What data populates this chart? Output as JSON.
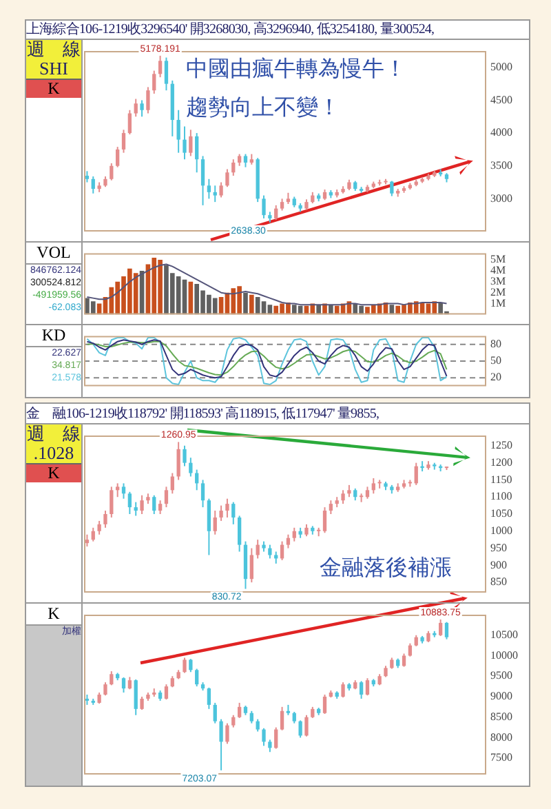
{
  "chart_data": [
    {
      "type": "candlestick",
      "title": "上海綜合106-1219收3296540' 開3268030, 高3296940, 低3254180, 量300524,",
      "subtitle": "中國由瘋牛轉為慢牛！趨勢向上不變！",
      "annotations": [
        "週　線",
        "SHI",
        "K",
        "5178.191",
        "2638.30"
      ],
      "categories": [
        null,
        null,
        null,
        null,
        null,
        null,
        null,
        null,
        null,
        null,
        null,
        null,
        null,
        null,
        null,
        null,
        null,
        null,
        null,
        null,
        null,
        null,
        null,
        null,
        null,
        null,
        null,
        null,
        null,
        null,
        null,
        null,
        null,
        null,
        null,
        null,
        null,
        null,
        null,
        null,
        null,
        null,
        null,
        null,
        null,
        null,
        null,
        null,
        null,
        null,
        null,
        null,
        null,
        null,
        null,
        null,
        null,
        null,
        null,
        null,
        null,
        null,
        null,
        null,
        null,
        null
      ],
      "ohlc": [
        [
          3350,
          3420,
          3250,
          3300
        ],
        [
          3300,
          3340,
          3080,
          3150
        ],
        [
          3150,
          3250,
          3100,
          3200
        ],
        [
          3200,
          3340,
          3180,
          3300
        ],
        [
          3300,
          3540,
          3280,
          3500
        ],
        [
          3500,
          3790,
          3480,
          3750
        ],
        [
          3750,
          4050,
          3700,
          4000
        ],
        [
          4000,
          4350,
          3980,
          4300
        ],
        [
          4300,
          4520,
          4250,
          4450
        ],
        [
          4450,
          4500,
          4250,
          4350
        ],
        [
          4350,
          4700,
          4300,
          4650
        ],
        [
          4650,
          4950,
          4600,
          4900
        ],
        [
          4900,
          5178,
          4850,
          5100
        ],
        [
          5100,
          5150,
          4650,
          4750
        ],
        [
          4750,
          4800,
          3950,
          4200
        ],
        [
          4200,
          4350,
          3700,
          3900
        ],
        [
          3900,
          4100,
          3600,
          3700
        ],
        [
          3700,
          4050,
          3650,
          3950
        ],
        [
          3950,
          4000,
          3400,
          3600
        ],
        [
          3600,
          3650,
          2900,
          3200
        ],
        [
          3200,
          3300,
          3000,
          3100
        ],
        [
          3100,
          3200,
          2950,
          3050
        ],
        [
          3050,
          3250,
          3020,
          3200
        ],
        [
          3200,
          3450,
          3180,
          3400
        ],
        [
          3400,
          3600,
          3350,
          3550
        ],
        [
          3550,
          3680,
          3500,
          3650
        ],
        [
          3650,
          3680,
          3480,
          3550
        ],
        [
          3550,
          3680,
          3520,
          3600
        ],
        [
          3600,
          3620,
          2950,
          3000
        ],
        [
          3000,
          3050,
          2700,
          2750
        ],
        [
          2750,
          2800,
          2638,
          2700
        ],
        [
          2700,
          2900,
          2680,
          2850
        ],
        [
          2850,
          3000,
          2820,
          2950
        ],
        [
          2950,
          3090,
          2920,
          3000
        ],
        [
          3000,
          3030,
          2870,
          2900
        ],
        [
          2900,
          2930,
          2800,
          2850
        ],
        [
          2850,
          2990,
          2830,
          2950
        ],
        [
          2950,
          3100,
          2930,
          3050
        ],
        [
          3050,
          3080,
          2960,
          3000
        ],
        [
          3000,
          3140,
          2980,
          3100
        ],
        [
          3100,
          3130,
          3010,
          3050
        ],
        [
          3050,
          3140,
          3020,
          3100
        ],
        [
          3100,
          3190,
          3080,
          3150
        ],
        [
          3150,
          3290,
          3130,
          3250
        ],
        [
          3250,
          3270,
          3120,
          3150
        ],
        [
          3150,
          3180,
          3090,
          3120
        ],
        [
          3120,
          3210,
          3100,
          3180
        ],
        [
          3180,
          3260,
          3160,
          3230
        ],
        [
          3230,
          3290,
          3200,
          3250
        ],
        [
          3250,
          3300,
          3220,
          3260
        ],
        [
          3260,
          3270,
          3040,
          3080
        ],
        [
          3080,
          3150,
          3030,
          3120
        ],
        [
          3120,
          3190,
          3090,
          3160
        ],
        [
          3160,
          3240,
          3140,
          3210
        ],
        [
          3210,
          3290,
          3190,
          3260
        ],
        [
          3260,
          3330,
          3240,
          3300
        ],
        [
          3300,
          3380,
          3280,
          3350
        ],
        [
          3350,
          3430,
          3330,
          3400
        ],
        [
          3400,
          3450,
          3340,
          3370
        ],
        [
          3370,
          3390,
          3250,
          3300
        ],
        null,
        null,
        null,
        null,
        null,
        null
      ],
      "ylim": [
        2500,
        5250
      ],
      "yticks": [
        3000,
        3500,
        4000,
        4500,
        5000
      ],
      "tick_labels": "y"
    },
    {
      "type": "bar",
      "annotations": [
        "VOL",
        "846762.124",
        "300524.812",
        "-491959.56",
        "-62.083"
      ],
      "categories": [
        null,
        null,
        null,
        null,
        null,
        null,
        null,
        null,
        null,
        null,
        null,
        null,
        null,
        null,
        null,
        null,
        null,
        null,
        null,
        null,
        null,
        null,
        null,
        null,
        null,
        null,
        null,
        null,
        null,
        null,
        null,
        null,
        null,
        null,
        null,
        null,
        null,
        null,
        null,
        null,
        null,
        null,
        null,
        null,
        null,
        null,
        null,
        null,
        null,
        null,
        null,
        null,
        null,
        null,
        null,
        null,
        null,
        null,
        null,
        null,
        null,
        null,
        null,
        null,
        null,
        null
      ],
      "series": [
        {
          "type": "bar",
          "values": [
            1.5,
            1.2,
            1.0,
            1.6,
            2.5,
            3.0,
            3.5,
            4.2,
            3.8,
            4.0,
            4.6,
            5.2,
            5.0,
            4.5,
            3.8,
            3.5,
            3.2,
            3.0,
            2.8,
            2.2,
            1.8,
            1.5,
            1.6,
            2.0,
            2.4,
            2.6,
            2.0,
            1.8,
            1.6,
            1.2,
            0.9,
            0.8,
            1.0,
            1.1,
            0.9,
            0.8,
            0.8,
            1.0,
            0.9,
            1.0,
            0.9,
            0.8,
            1.0,
            1.2,
            1.0,
            0.8,
            0.7,
            0.9,
            1.0,
            1.1,
            0.9,
            0.8,
            0.9,
            1.1,
            1.2,
            1.1,
            1.0,
            1.2,
            1.1,
            0.3,
            null,
            null,
            null,
            null,
            null,
            null
          ],
          "colors": [
            "#606060",
            "#606060",
            "#c8501e",
            "#c8501e",
            "#c8501e",
            "#c8501e",
            "#c8501e",
            "#c8501e",
            "#c8501e",
            "#606060",
            "#c8501e",
            "#c8501e",
            "#c8501e",
            "#606060",
            "#606060",
            "#606060",
            "#606060",
            "#c8501e",
            "#606060",
            "#606060",
            "#606060",
            "#606060",
            "#c8501e",
            "#c8501e",
            "#c8501e",
            "#c8501e",
            "#606060",
            "#c8501e",
            "#606060",
            "#606060",
            "#606060",
            "#c8501e",
            "#c8501e",
            "#c8501e",
            "#606060",
            "#606060",
            "#c8501e",
            "#c8501e",
            "#606060",
            "#c8501e",
            "#606060",
            "#c8501e",
            "#c8501e",
            "#c8501e",
            "#606060",
            "#606060",
            "#c8501e",
            "#c8501e",
            "#c8501e",
            "#c8501e",
            "#606060",
            "#c8501e",
            "#c8501e",
            "#c8501e",
            "#c8501e",
            "#c8501e",
            "#c8501e",
            "#c8501e",
            "#606060",
            "#606060",
            null,
            null,
            null,
            null,
            null,
            null
          ]
        },
        {
          "type": "line",
          "color": "#55557a",
          "values": [
            1.6,
            1.5,
            1.4,
            1.4,
            1.6,
            2.0,
            2.5,
            3.0,
            3.4,
            3.7,
            4.0,
            4.3,
            4.5,
            4.6,
            4.4,
            4.1,
            3.8,
            3.5,
            3.2,
            2.9,
            2.6,
            2.3,
            2.0,
            1.9,
            1.9,
            2.0,
            2.1,
            2.0,
            1.9,
            1.7,
            1.5,
            1.3,
            1.1,
            1.0,
            1.0,
            0.9,
            0.9,
            0.9,
            0.9,
            0.9,
            0.9,
            0.9,
            0.9,
            1.0,
            1.0,
            0.9,
            0.9,
            0.9,
            0.9,
            1.0,
            1.0,
            1.0,
            0.9,
            1.0,
            1.0,
            1.1,
            1.1,
            1.1,
            1.1,
            1.0,
            null,
            null,
            null,
            null,
            null,
            null
          ]
        }
      ],
      "ylim": [
        0,
        5.6
      ],
      "yticks": [
        {
          "value": 1,
          "label": "1M"
        },
        {
          "value": 2,
          "label": "2M"
        },
        {
          "value": 3,
          "label": "3M"
        },
        {
          "value": 4,
          "label": "4M"
        },
        {
          "value": 5,
          "label": "5M"
        }
      ],
      "tick_labels": "y"
    },
    {
      "type": "line",
      "annotations": [
        "KD"
      ],
      "categories": [
        null,
        null,
        null,
        null,
        null,
        null,
        null,
        null,
        null,
        null,
        null,
        null,
        null,
        null,
        null,
        null,
        null,
        null,
        null,
        null,
        null,
        null,
        null,
        null,
        null,
        null,
        null,
        null,
        null,
        null,
        null,
        null,
        null,
        null,
        null,
        null,
        null,
        null,
        null,
        null,
        null,
        null,
        null,
        null,
        null,
        null,
        null,
        null,
        null,
        null,
        null,
        null,
        null,
        null,
        null,
        null,
        null,
        null,
        null,
        null,
        null,
        null,
        null,
        null,
        null,
        null
      ],
      "series": [
        {
          "name": "22.627",
          "color": "#33337a",
          "values": [
            85,
            82,
            75,
            70,
            78,
            85,
            88,
            86,
            84,
            80,
            85,
            88,
            86,
            60,
            35,
            25,
            28,
            35,
            30,
            25,
            22,
            20,
            22,
            40,
            60,
            75,
            80,
            78,
            70,
            40,
            25,
            22,
            30,
            45,
            60,
            70,
            75,
            65,
            50,
            45,
            60,
            72,
            78,
            75,
            60,
            40,
            32,
            45,
            62,
            74,
            72,
            50,
            35,
            40,
            55,
            70,
            80,
            78,
            50,
            23,
            null,
            null,
            null,
            null,
            null,
            null
          ]
        },
        {
          "name": "34.817",
          "color": "#66aa55",
          "values": [
            80,
            81,
            79,
            76,
            76,
            79,
            82,
            84,
            84,
            83,
            83,
            85,
            85,
            77,
            63,
            50,
            42,
            40,
            37,
            33,
            29,
            26,
            25,
            30,
            40,
            52,
            61,
            67,
            68,
            59,
            48,
            39,
            36,
            39,
            46,
            54,
            61,
            62,
            58,
            54,
            56,
            61,
            67,
            70,
            67,
            58,
            49,
            48,
            53,
            60,
            64,
            59,
            51,
            47,
            50,
            57,
            65,
            69,
            63,
            35,
            null,
            null,
            null,
            null,
            null,
            null
          ]
        },
        {
          "name": "21.578",
          "color": "#5cc4dc",
          "values": [
            90,
            80,
            65,
            60,
            88,
            92,
            92,
            85,
            82,
            72,
            92,
            92,
            84,
            20,
            10,
            8,
            30,
            50,
            20,
            15,
            15,
            12,
            25,
            70,
            90,
            92,
            88,
            75,
            60,
            10,
            8,
            15,
            45,
            70,
            88,
            90,
            85,
            50,
            25,
            40,
            88,
            90,
            88,
            72,
            35,
            12,
            15,
            70,
            88,
            90,
            70,
            15,
            12,
            50,
            80,
            92,
            92,
            75,
            15,
            22,
            null,
            null,
            null,
            null,
            null,
            null
          ]
        }
      ],
      "ref_lines": [
        {
          "axis": "y",
          "value": 20,
          "line_style": "dashed"
        },
        {
          "axis": "y",
          "value": 50,
          "line_style": "dashed"
        },
        {
          "axis": "y",
          "value": 80,
          "line_style": "dashed"
        }
      ],
      "ylim": [
        5,
        95
      ],
      "yticks": [
        20,
        50,
        80
      ],
      "tick_labels": "y"
    },
    {
      "type": "candlestick",
      "title": "金　融106-1219收118792' 開118593' 高118915, 低117947' 量9855,",
      "subtitle": "金融落後補漲",
      "annotations": [
        "週　線",
        ".1028",
        "K",
        "1260.95",
        "830.72"
      ],
      "categories": [
        null,
        null,
        null,
        null,
        null,
        null,
        null,
        null,
        null,
        null,
        null,
        null,
        null,
        null,
        null,
        null,
        null,
        null,
        null,
        null,
        null,
        null,
        null,
        null,
        null,
        null,
        null,
        null,
        null,
        null,
        null,
        null,
        null,
        null,
        null,
        null,
        null,
        null,
        null,
        null,
        null,
        null,
        null,
        null,
        null,
        null,
        null,
        null,
        null,
        null,
        null,
        null,
        null,
        null,
        null,
        null,
        null,
        null,
        null,
        null,
        null,
        null,
        null,
        null,
        null,
        null
      ],
      "ohlc": [
        [
          965,
          990,
          955,
          975
        ],
        [
          975,
          1010,
          970,
          1000
        ],
        [
          1000,
          1030,
          990,
          1020
        ],
        [
          1020,
          1060,
          1010,
          1050
        ],
        [
          1050,
          1130,
          1040,
          1120
        ],
        [
          1120,
          1140,
          1100,
          1130
        ],
        [
          1130,
          1140,
          1095,
          1110
        ],
        [
          1110,
          1115,
          1050,
          1070
        ],
        [
          1070,
          1085,
          1045,
          1060
        ],
        [
          1060,
          1105,
          1050,
          1090
        ],
        [
          1090,
          1110,
          1080,
          1100
        ],
        [
          1100,
          1105,
          1050,
          1060
        ],
        [
          1060,
          1090,
          1050,
          1080
        ],
        [
          1080,
          1130,
          1070,
          1120
        ],
        [
          1120,
          1170,
          1110,
          1160
        ],
        [
          1160,
          1261,
          1150,
          1240
        ],
        [
          1240,
          1250,
          1190,
          1200
        ],
        [
          1200,
          1215,
          1160,
          1170
        ],
        [
          1170,
          1180,
          1120,
          1140
        ],
        [
          1140,
          1150,
          1070,
          1090
        ],
        [
          1090,
          1095,
          930,
          1000
        ],
        [
          1000,
          1060,
          990,
          1040
        ],
        [
          1040,
          1075,
          1030,
          1060
        ],
        [
          1060,
          1095,
          1040,
          1080
        ],
        [
          1080,
          1085,
          1020,
          1040
        ],
        [
          1040,
          1045,
          940,
          960
        ],
        [
          960,
          970,
          831,
          860
        ],
        [
          860,
          950,
          850,
          930
        ],
        [
          930,
          975,
          920,
          960
        ],
        [
          960,
          970,
          940,
          950
        ],
        [
          950,
          960,
          920,
          930
        ],
        [
          930,
          940,
          905,
          920
        ],
        [
          920,
          970,
          915,
          960
        ],
        [
          960,
          990,
          950,
          980
        ],
        [
          980,
          1010,
          970,
          1000
        ],
        [
          1000,
          1010,
          980,
          990
        ],
        [
          990,
          1020,
          985,
          1010
        ],
        [
          1010,
          1015,
          990,
          1000
        ],
        [
          1000,
          1010,
          985,
          1000
        ],
        [
          1000,
          1070,
          995,
          1060
        ],
        [
          1060,
          1090,
          1050,
          1080
        ],
        [
          1080,
          1100,
          1070,
          1090
        ],
        [
          1090,
          1120,
          1080,
          1110
        ],
        [
          1110,
          1135,
          1100,
          1120
        ],
        [
          1120,
          1125,
          1090,
          1100
        ],
        [
          1100,
          1110,
          1085,
          1100
        ],
        [
          1100,
          1130,
          1095,
          1120
        ],
        [
          1120,
          1155,
          1110,
          1140
        ],
        [
          1140,
          1150,
          1125,
          1140
        ],
        [
          1140,
          1145,
          1120,
          1130
        ],
        [
          1130,
          1135,
          1110,
          1120
        ],
        [
          1120,
          1140,
          1115,
          1130
        ],
        [
          1130,
          1150,
          1125,
          1140
        ],
        [
          1140,
          1150,
          1130,
          1140
        ],
        [
          1140,
          1200,
          1135,
          1190
        ],
        [
          1190,
          1205,
          1175,
          1185
        ],
        [
          1185,
          1205,
          1180,
          1195
        ],
        [
          1195,
          1200,
          1180,
          1190
        ],
        [
          1190,
          1195,
          1175,
          1185
        ],
        [
          1185,
          1189,
          1179,
          1188
        ],
        null,
        null,
        null,
        null,
        null,
        null
      ],
      "ylim": [
        820,
        1280
      ],
      "yticks": [
        850,
        900,
        950,
        1000,
        1050,
        1100,
        1150,
        1200,
        1250
      ],
      "tick_labels": "y"
    },
    {
      "type": "candlestick",
      "annotations": [
        "K",
        "加權",
        "10883.75",
        "7203.07"
      ],
      "categories": [
        null,
        null,
        null,
        null,
        null,
        null,
        null,
        null,
        null,
        null,
        null,
        null,
        null,
        null,
        null,
        null,
        null,
        null,
        null,
        null,
        null,
        null,
        null,
        null,
        null,
        null,
        null,
        null,
        null,
        null,
        null,
        null,
        null,
        null,
        null,
        null,
        null,
        null,
        null,
        null,
        null,
        null,
        null,
        null,
        null,
        null,
        null,
        null,
        null,
        null,
        null,
        null,
        null,
        null,
        null,
        null,
        null,
        null,
        null,
        null,
        null,
        null,
        null,
        null,
        null,
        null
      ],
      "ohlc": [
        [
          8950,
          9050,
          8800,
          8900
        ],
        [
          8900,
          8950,
          8800,
          8850
        ],
        [
          8850,
          9100,
          8830,
          9050
        ],
        [
          9050,
          9350,
          9030,
          9300
        ],
        [
          9300,
          9620,
          9280,
          9550
        ],
        [
          9550,
          9580,
          9400,
          9450
        ],
        [
          9450,
          9470,
          9100,
          9200
        ],
        [
          9200,
          9480,
          9180,
          9400
        ],
        [
          9400,
          9420,
          8550,
          8700
        ],
        [
          8700,
          9000,
          8680,
          8950
        ],
        [
          8950,
          9100,
          8900,
          9050
        ],
        [
          9050,
          9200,
          9000,
          9100
        ],
        [
          9100,
          9150,
          8900,
          8950
        ],
        [
          8950,
          9300,
          8930,
          9250
        ],
        [
          9250,
          9500,
          9230,
          9450
        ],
        [
          9450,
          9650,
          9430,
          9600
        ],
        [
          9600,
          9950,
          9580,
          9900
        ],
        [
          9900,
          9920,
          9600,
          9650
        ],
        [
          9650,
          9680,
          9250,
          9300
        ],
        [
          9300,
          9350,
          9150,
          9200
        ],
        [
          9200,
          9220,
          8700,
          8800
        ],
        [
          8800,
          8850,
          8350,
          8400
        ],
        [
          8400,
          8450,
          7203,
          7900
        ],
        [
          7900,
          8350,
          7850,
          8300
        ],
        [
          8300,
          8550,
          8250,
          8500
        ],
        [
          8500,
          8850,
          8480,
          8750
        ],
        [
          8750,
          8780,
          8550,
          8600
        ],
        [
          8600,
          8650,
          8350,
          8400
        ],
        [
          8400,
          8450,
          8150,
          8200
        ],
        [
          8200,
          8230,
          7800,
          7900
        ],
        [
          7900,
          7950,
          7650,
          7750
        ],
        [
          7750,
          8250,
          7730,
          8200
        ],
        [
          8200,
          8750,
          8180,
          8650
        ],
        [
          8650,
          8800,
          8550,
          8600
        ],
        [
          8600,
          8630,
          8350,
          8400
        ],
        [
          8400,
          8420,
          8000,
          8050
        ],
        [
          8050,
          8550,
          8030,
          8500
        ],
        [
          8500,
          8750,
          8480,
          8700
        ],
        [
          8700,
          8730,
          8550,
          8600
        ],
        [
          8600,
          9050,
          8580,
          9000
        ],
        [
          9000,
          9150,
          8980,
          9100
        ],
        [
          9100,
          9130,
          8950,
          9000
        ],
        [
          9000,
          9350,
          8980,
          9300
        ],
        [
          9300,
          9330,
          9150,
          9200
        ],
        [
          9200,
          9400,
          9180,
          9350
        ],
        [
          9350,
          9380,
          8950,
          9050
        ],
        [
          9050,
          9450,
          9030,
          9400
        ],
        [
          9400,
          9430,
          9250,
          9300
        ],
        [
          9300,
          9550,
          9280,
          9500
        ],
        [
          9500,
          9750,
          9480,
          9700
        ],
        [
          9700,
          9950,
          9680,
          9900
        ],
        [
          9900,
          9930,
          9700,
          9750
        ],
        [
          9750,
          10050,
          9730,
          10000
        ],
        [
          10000,
          10300,
          9980,
          10250
        ],
        [
          10250,
          10500,
          10230,
          10450
        ],
        [
          10450,
          10480,
          10300,
          10350
        ],
        [
          10350,
          10600,
          10330,
          10550
        ],
        [
          10550,
          10600,
          10450,
          10500
        ],
        [
          10500,
          10883,
          10480,
          10800
        ],
        [
          10800,
          10820,
          10400,
          10450
        ],
        null,
        null,
        null,
        null,
        null,
        null
      ],
      "ylim": [
        7100,
        11000
      ],
      "yticks": [
        7500,
        8000,
        8500,
        9000,
        9500,
        10000,
        10500
      ],
      "tick_labels": "y"
    }
  ]
}
